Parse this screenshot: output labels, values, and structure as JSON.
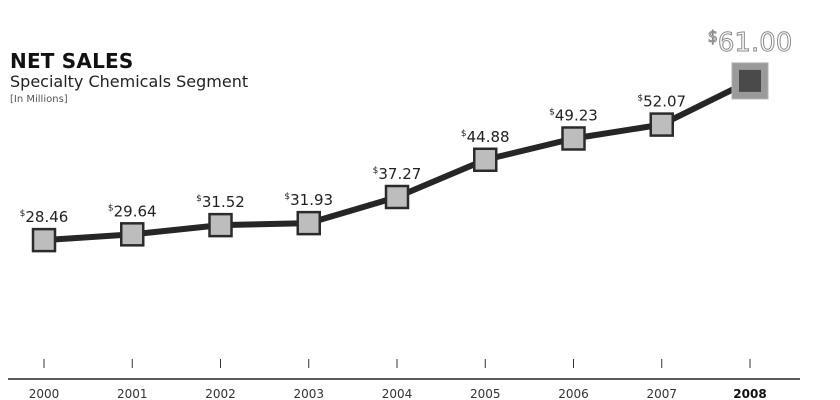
{
  "chart_data": {
    "type": "line",
    "title": "NET SALES",
    "subtitle": "Specialty Chemicals Segment",
    "units": "[In Millions]",
    "currency_symbol": "$",
    "categories": [
      "2000",
      "2001",
      "2002",
      "2003",
      "2004",
      "2005",
      "2006",
      "2007",
      "2008"
    ],
    "values": [
      28.46,
      29.64,
      31.52,
      31.93,
      37.27,
      44.88,
      49.23,
      52.07,
      61.0
    ],
    "value_labels": [
      "28.46",
      "29.64",
      "31.52",
      "31.93",
      "37.27",
      "44.88",
      "49.23",
      "52.07",
      "61.00"
    ],
    "highlight_index": 8,
    "ylim": [
      6,
      62
    ],
    "xlabel": "",
    "ylabel": "",
    "grid": false,
    "legend": "none"
  },
  "colors": {
    "line": "#262626",
    "marker_fill": "#bdbdbd",
    "marker_stroke": "#2b2b2b",
    "highlight_inner": "#4a4a4a",
    "highlight_outer": "#9a9a9a"
  }
}
